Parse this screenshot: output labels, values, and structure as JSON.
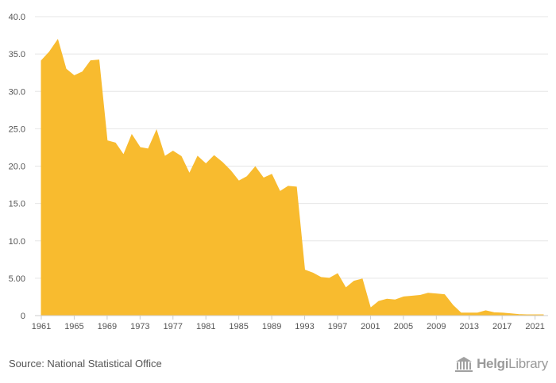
{
  "chart_data": {
    "type": "area",
    "title": "",
    "xlabel": "",
    "ylabel": "",
    "ylim": [
      0,
      40
    ],
    "xlim": [
      1961,
      2022
    ],
    "grid": true,
    "legend": "none",
    "color": "#f8bb2f",
    "y_ticks": [
      "0",
      "5.00",
      "10.0",
      "15.0",
      "20.0",
      "25.0",
      "30.0",
      "35.0",
      "40.0"
    ],
    "x_ticks": [
      "1961",
      "1965",
      "1969",
      "1973",
      "1977",
      "1981",
      "1985",
      "1989",
      "1993",
      "1997",
      "2001",
      "2005",
      "2009",
      "2013",
      "2017",
      "2021"
    ],
    "x": [
      1961,
      1962,
      1963,
      1964,
      1965,
      1966,
      1967,
      1968,
      1969,
      1970,
      1971,
      1972,
      1973,
      1974,
      1975,
      1976,
      1977,
      1978,
      1979,
      1980,
      1981,
      1982,
      1983,
      1984,
      1985,
      1986,
      1987,
      1988,
      1989,
      1990,
      1991,
      1992,
      1993,
      1994,
      1995,
      1996,
      1997,
      1998,
      1999,
      2000,
      2001,
      2002,
      2003,
      2004,
      2005,
      2006,
      2007,
      2008,
      2009,
      2010,
      2011,
      2012,
      2013,
      2014,
      2015,
      2016,
      2017,
      2018,
      2019,
      2020,
      2021,
      2022
    ],
    "values": [
      34.1,
      35.3,
      36.9,
      33.0,
      32.1,
      32.6,
      34.1,
      34.2,
      23.4,
      23.1,
      21.5,
      24.2,
      22.5,
      22.3,
      24.8,
      21.3,
      22.0,
      21.3,
      19.0,
      21.3,
      20.3,
      21.4,
      20.5,
      19.4,
      18.0,
      18.6,
      19.9,
      18.4,
      18.9,
      16.6,
      17.3,
      17.2,
      6.1,
      5.7,
      5.1,
      5.0,
      5.6,
      3.7,
      4.6,
      4.9,
      1.0,
      1.9,
      2.2,
      2.1,
      2.5,
      2.6,
      2.7,
      3.0,
      2.9,
      2.8,
      1.4,
      0.35,
      0.35,
      0.35,
      0.65,
      0.4,
      0.35,
      0.25,
      0.15,
      0.1,
      0.1,
      0.1
    ]
  },
  "footer": {
    "source": "Source: National Statistical Office",
    "brand_bold": "Helgi",
    "brand_regular": "Library",
    "brand_icon": "library-building-icon"
  }
}
